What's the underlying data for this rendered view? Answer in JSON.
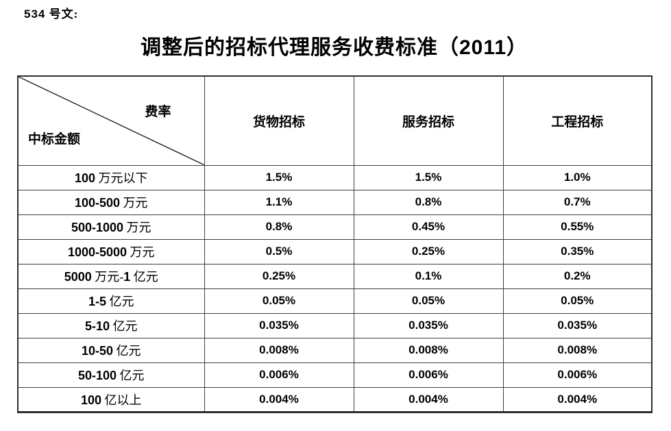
{
  "page": {
    "doc_label": "534 号文:",
    "title": "调整后的招标代理服务收费标准（2011）"
  },
  "table": {
    "corner": {
      "top_right": "费率",
      "bottom_left": "中标金额"
    },
    "columns": [
      "货物招标",
      "服务招标",
      "工程招标"
    ],
    "rows": [
      {
        "amount": "100 万元以下",
        "values": [
          "1.5%",
          "1.5%",
          "1.0%"
        ]
      },
      {
        "amount": "100-500 万元",
        "values": [
          "1.1%",
          "0.8%",
          "0.7%"
        ]
      },
      {
        "amount": "500-1000 万元",
        "values": [
          "0.8%",
          "0.45%",
          "0.55%"
        ]
      },
      {
        "amount": "1000-5000 万元",
        "values": [
          "0.5%",
          "0.25%",
          "0.35%"
        ]
      },
      {
        "amount": "5000 万元-1 亿元",
        "values": [
          "0.25%",
          "0.1%",
          "0.2%"
        ]
      },
      {
        "amount": "1-5 亿元",
        "values": [
          "0.05%",
          "0.05%",
          "0.05%"
        ]
      },
      {
        "amount": "5-10 亿元",
        "values": [
          "0.035%",
          "0.035%",
          "0.035%"
        ]
      },
      {
        "amount": "10-50 亿元",
        "values": [
          "0.008%",
          "0.008%",
          "0.008%"
        ]
      },
      {
        "amount": "50-100 亿元",
        "values": [
          "0.006%",
          "0.006%",
          "0.006%"
        ]
      },
      {
        "amount": "100 亿以上",
        "values": [
          "0.004%",
          "0.004%",
          "0.004%"
        ]
      }
    ]
  },
  "colors": {
    "text": "#000000",
    "border_inner": "#3d3d3d",
    "border_outer": "#2e2e2e",
    "background": "#ffffff"
  }
}
